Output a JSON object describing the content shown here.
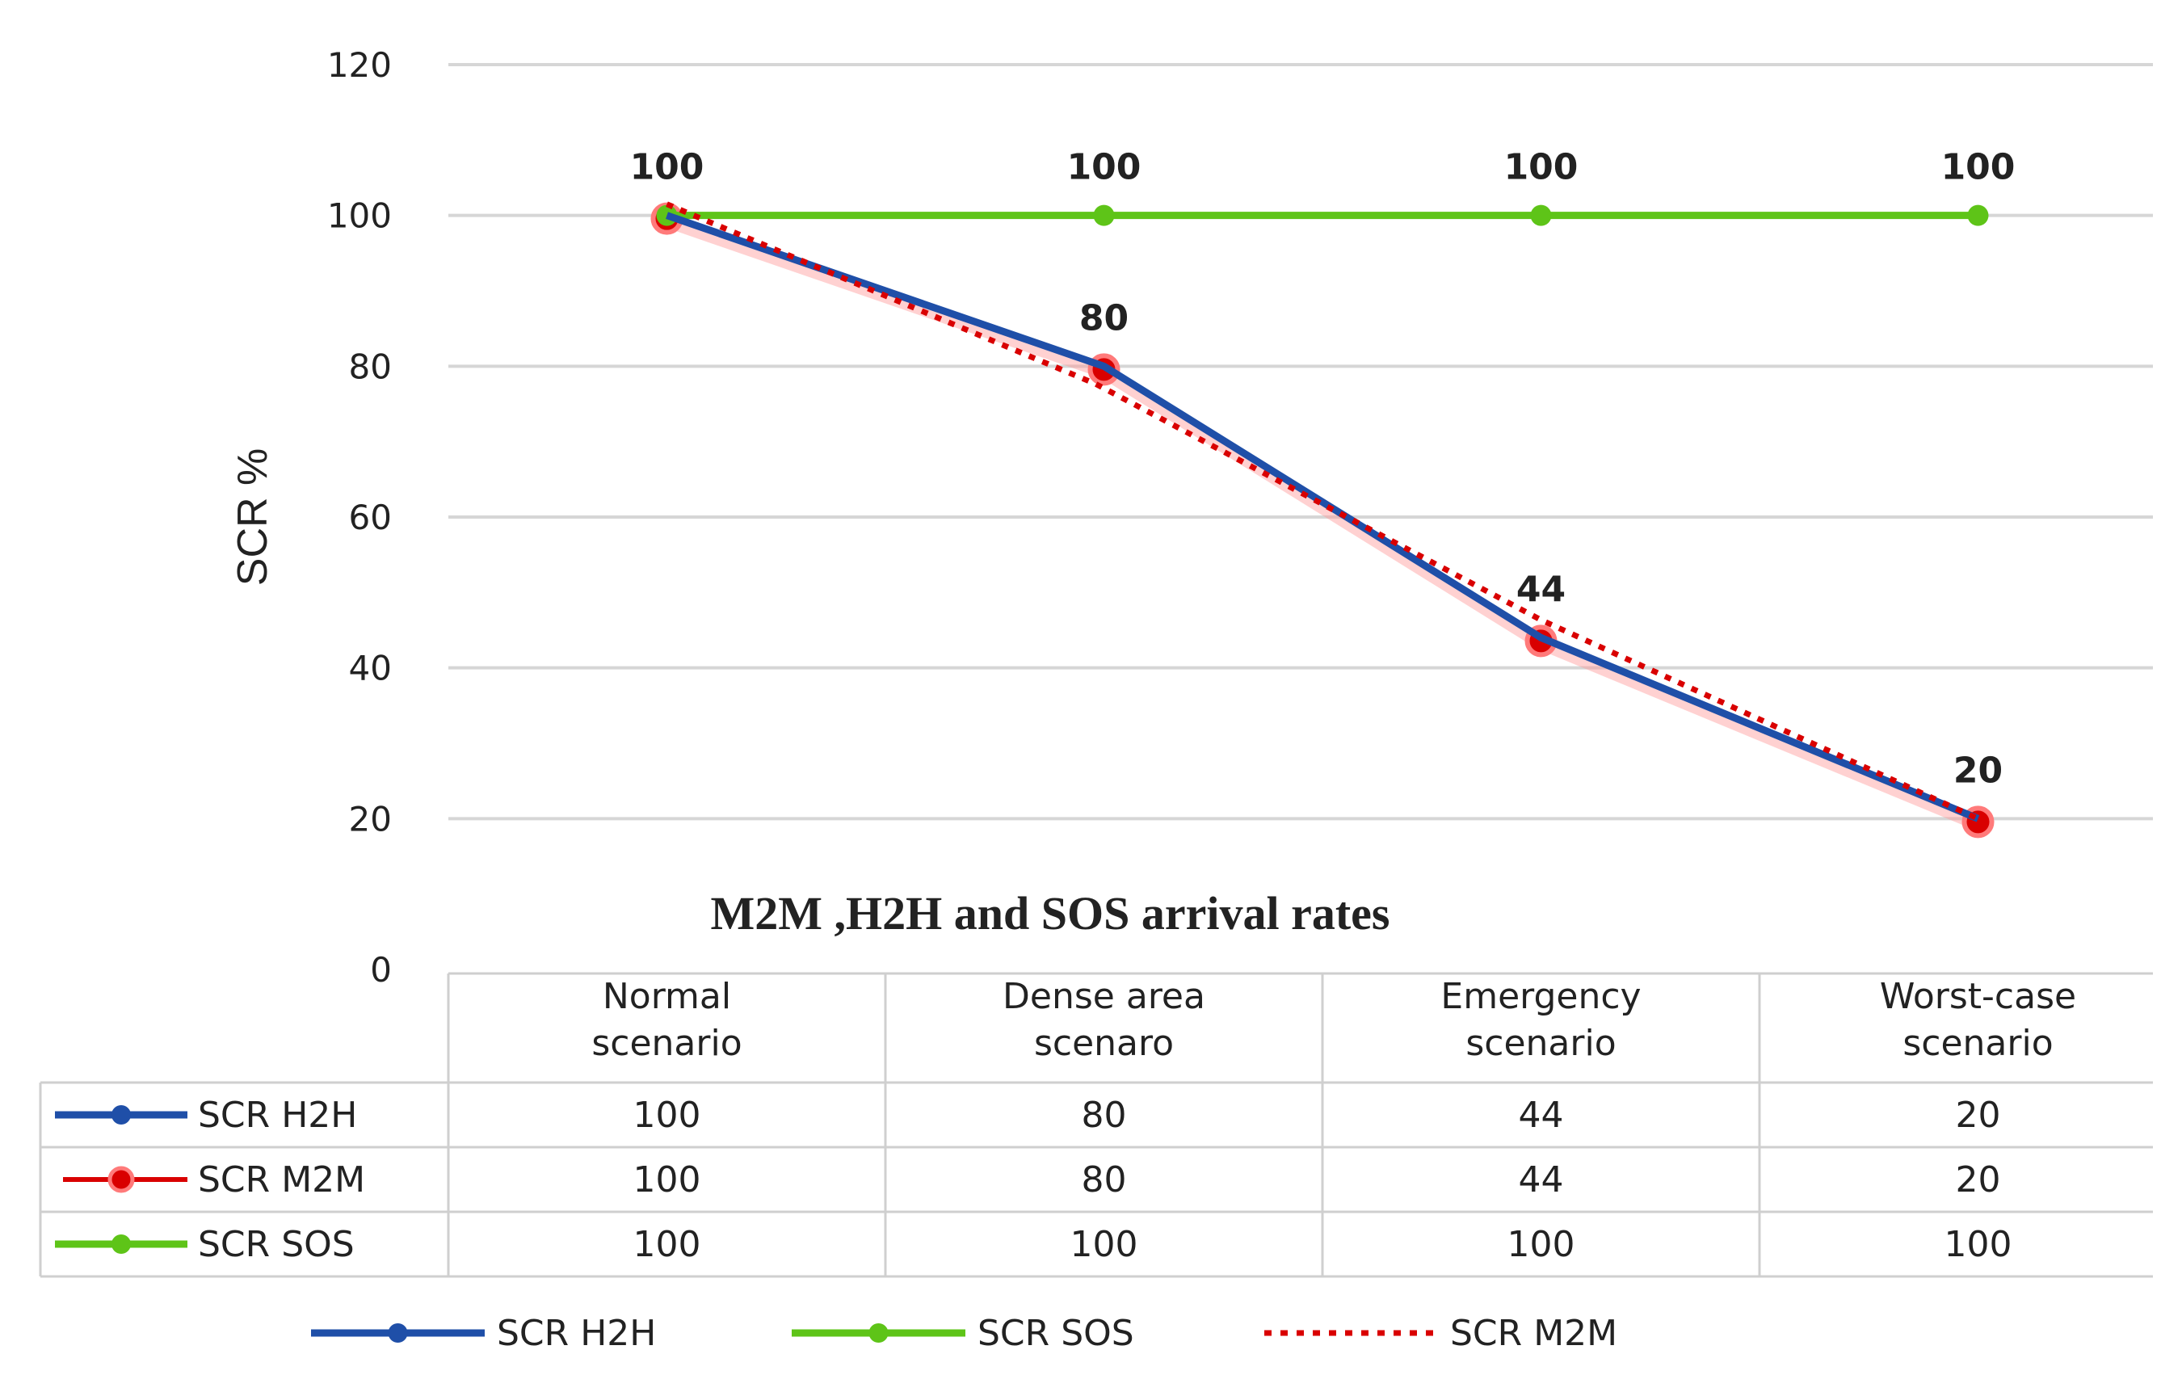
{
  "chart_data": {
    "type": "line",
    "title": "M2M ,H2H and SOS arrival rates",
    "xlabel": "",
    "ylabel": "SCR %",
    "ylim": [
      0,
      120
    ],
    "yticks": [
      0,
      20,
      40,
      60,
      80,
      100,
      120
    ],
    "grid": true,
    "categories": [
      [
        "Normal",
        "scenario"
      ],
      [
        "Dense area",
        "scenaro"
      ],
      [
        "Emergency",
        "scenario"
      ],
      [
        "Worst-case",
        "scenario"
      ]
    ],
    "series": [
      {
        "name": "SCR H2H",
        "values": [
          100,
          80,
          44,
          20
        ],
        "color": "#1f4fa8",
        "style": "solid-marker"
      },
      {
        "name": "SCR M2M",
        "values": [
          100,
          80,
          44,
          20
        ],
        "color": "#d90000",
        "style": "dotted-marker"
      },
      {
        "name": "SCR SOS",
        "values": [
          100,
          100,
          100,
          100
        ],
        "color": "#5ec418",
        "style": "solid-marker"
      }
    ],
    "data_labels": [
      {
        "series": "SCR SOS",
        "values": [
          "100",
          "100",
          "100",
          "100"
        ]
      },
      {
        "series": "SCR H2H",
        "values": [
          "",
          "80",
          "44",
          "20"
        ]
      }
    ],
    "table": {
      "rows": [
        {
          "name": "SCR H2H",
          "values": [
            "100",
            "80",
            "44",
            "20"
          ]
        },
        {
          "name": "SCR M2M",
          "values": [
            "100",
            "80",
            "44",
            "20"
          ]
        },
        {
          "name": "SCR SOS",
          "values": [
            "100",
            "100",
            "100",
            "100"
          ]
        }
      ]
    },
    "legend": {
      "placement": "bottom",
      "entries": [
        "SCR H2H",
        "SCR SOS",
        "SCR M2M"
      ]
    }
  }
}
